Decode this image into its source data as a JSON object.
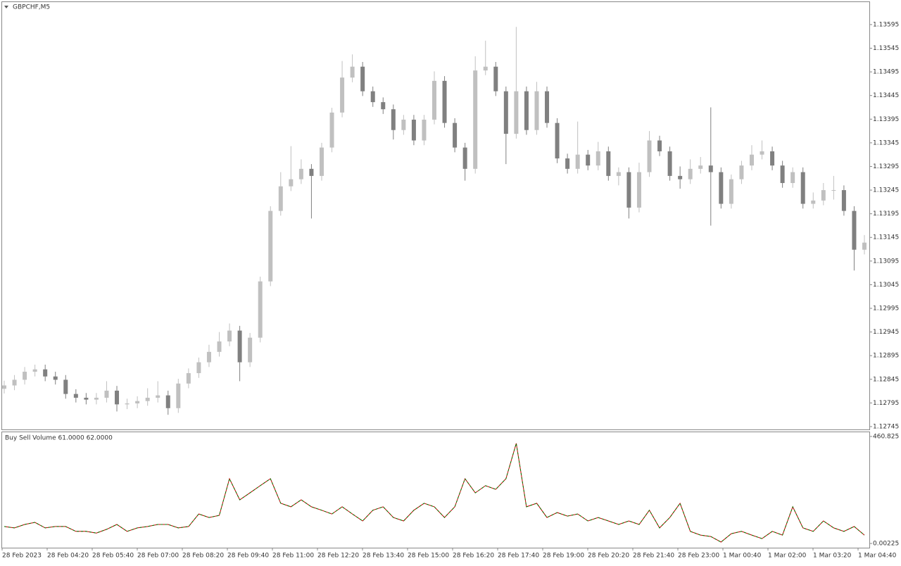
{
  "chart_data": [
    {
      "type": "candlestick",
      "title": "GBPCHF,M5",
      "x_labels": [
        "28 Feb 2023",
        "28 Feb 04:20",
        "28 Feb 05:40",
        "28 Feb 07:00",
        "28 Feb 08:20",
        "28 Feb 09:40",
        "28 Feb 11:00",
        "28 Feb 12:20",
        "28 Feb 13:40",
        "28 Feb 15:00",
        "28 Feb 16:20",
        "28 Feb 17:40",
        "28 Feb 19:00",
        "28 Feb 20:20",
        "28 Feb 21:40",
        "28 Feb 23:00",
        "1 Mar 00:40",
        "1 Mar 02:00",
        "1 Mar 03:20",
        "1 Mar 04:40"
      ],
      "open": [
        1.12825,
        1.12832,
        1.12844,
        1.12861,
        1.12866,
        1.12851,
        1.12844,
        1.12814,
        1.12806,
        1.12802,
        1.12806,
        1.12821,
        1.12792,
        1.12794,
        1.12799,
        1.12806,
        1.12811,
        1.12784,
        1.12836,
        1.12858,
        1.12881,
        1.12903,
        1.12925,
        1.12948,
        1.12881,
        1.12933,
        1.13052,
        1.13201,
        1.13253,
        1.13268,
        1.1329,
        1.13275,
        1.13335,
        1.13409,
        1.13483,
        1.13506,
        1.13454,
        1.13431,
        1.13416,
        1.13372,
        1.13394,
        1.1335,
        1.13394,
        1.13476,
        1.13387,
        1.13335,
        1.1329,
        1.13498,
        1.13506,
        1.13454,
        1.13364,
        1.13454,
        1.13372,
        1.13454,
        1.13387,
        1.13312,
        1.1329,
        1.1332,
        1.13297,
        1.13327,
        1.13275,
        1.13283,
        1.13208,
        1.13283,
        1.1335,
        1.13327,
        1.13275,
        1.13268,
        1.1329,
        1.13297,
        1.13283,
        1.13216,
        1.13268,
        1.13297,
        1.1332,
        1.13327,
        1.13297,
        1.1326,
        1.13283,
        1.13216,
        1.13223,
        1.13245,
        1.13245,
        1.13201,
        1.13119
      ],
      "high": [
        1.12842,
        1.12854,
        1.12871,
        1.12876,
        1.12876,
        1.12861,
        1.12854,
        1.12824,
        1.12816,
        1.12816,
        1.12841,
        1.12831,
        1.12804,
        1.12809,
        1.12826,
        1.12841,
        1.12821,
        1.12846,
        1.12868,
        1.12891,
        1.12918,
        1.12945,
        1.12963,
        1.12958,
        1.12943,
        1.13062,
        1.13211,
        1.13283,
        1.13338,
        1.1331,
        1.133,
        1.13345,
        1.13419,
        1.13518,
        1.13532,
        1.13516,
        1.13464,
        1.13441,
        1.13426,
        1.13404,
        1.13404,
        1.13404,
        1.13496,
        1.13486,
        1.13397,
        1.13345,
        1.13528,
        1.13561,
        1.13516,
        1.13464,
        1.1359,
        1.13464,
        1.13474,
        1.13464,
        1.13397,
        1.13322,
        1.1339,
        1.1333,
        1.13347,
        1.13337,
        1.13293,
        1.13293,
        1.13303,
        1.1337,
        1.1336,
        1.13337,
        1.13295,
        1.1331,
        1.13315,
        1.1342,
        1.13293,
        1.13278,
        1.13307,
        1.1334,
        1.1335,
        1.13337,
        1.13307,
        1.13293,
        1.13293,
        1.1324,
        1.1326,
        1.13275,
        1.13255,
        1.13211,
        1.1315
      ],
      "low": [
        1.12815,
        1.12822,
        1.12834,
        1.12851,
        1.12841,
        1.12834,
        1.12804,
        1.12796,
        1.12792,
        1.12792,
        1.12796,
        1.12777,
        1.12782,
        1.12784,
        1.12789,
        1.12796,
        1.1277,
        1.12774,
        1.12826,
        1.12848,
        1.12871,
        1.12893,
        1.12915,
        1.12841,
        1.12871,
        1.12923,
        1.13042,
        1.13191,
        1.13243,
        1.13258,
        1.13185,
        1.13265,
        1.13325,
        1.13399,
        1.13473,
        1.13444,
        1.13421,
        1.13406,
        1.13352,
        1.13362,
        1.1334,
        1.1334,
        1.13384,
        1.13377,
        1.13325,
        1.13265,
        1.1328,
        1.13488,
        1.13444,
        1.133,
        1.13354,
        1.13362,
        1.13362,
        1.13377,
        1.13302,
        1.1328,
        1.1328,
        1.13287,
        1.13287,
        1.13265,
        1.13255,
        1.13185,
        1.13198,
        1.13273,
        1.13317,
        1.13265,
        1.13248,
        1.13258,
        1.1328,
        1.1317,
        1.13206,
        1.13206,
        1.13258,
        1.13287,
        1.1331,
        1.13287,
        1.1325,
        1.1325,
        1.13206,
        1.13206,
        1.13213,
        1.13225,
        1.13191,
        1.13075,
        1.13109
      ],
      "close": [
        1.12832,
        1.12844,
        1.12861,
        1.12866,
        1.12851,
        1.12844,
        1.12814,
        1.12806,
        1.12802,
        1.12806,
        1.12821,
        1.12792,
        1.12794,
        1.12799,
        1.12806,
        1.12811,
        1.12784,
        1.12836,
        1.12858,
        1.12881,
        1.12903,
        1.12925,
        1.12948,
        1.12881,
        1.12933,
        1.13052,
        1.13201,
        1.13253,
        1.13268,
        1.1329,
        1.13275,
        1.13335,
        1.13409,
        1.13483,
        1.13506,
        1.13454,
        1.13431,
        1.13416,
        1.13372,
        1.13394,
        1.1335,
        1.13394,
        1.13476,
        1.13387,
        1.13335,
        1.1329,
        1.13498,
        1.13506,
        1.13454,
        1.13364,
        1.13454,
        1.13372,
        1.13454,
        1.13387,
        1.13312,
        1.1329,
        1.1332,
        1.13297,
        1.13327,
        1.13275,
        1.13283,
        1.13208,
        1.13283,
        1.1335,
        1.13327,
        1.13275,
        1.13268,
        1.1329,
        1.13297,
        1.13283,
        1.13216,
        1.13268,
        1.13297,
        1.1332,
        1.13327,
        1.13297,
        1.1326,
        1.13283,
        1.13216,
        1.13223,
        1.13245,
        1.13245,
        1.13201,
        1.13119,
        1.13134
      ],
      "up_color": "#c0c0c0",
      "down_color": "#808080",
      "ylim": [
        1.12739,
        1.13644
      ],
      "yticks": [
        1.13595,
        1.13545,
        1.13495,
        1.13445,
        1.13395,
        1.13345,
        1.13295,
        1.13245,
        1.13195,
        1.13145,
        1.13095,
        1.13045,
        1.12995,
        1.12945,
        1.12895,
        1.12845,
        1.12795,
        1.12745
      ]
    },
    {
      "type": "line",
      "title": "Buy Sell Volume 61.0000 62.0000",
      "values": [
        73,
        67,
        82,
        91,
        67,
        73,
        73,
        52,
        52,
        45,
        61,
        82,
        52,
        67,
        73,
        82,
        82,
        67,
        73,
        127,
        112,
        121,
        279,
        188,
        218,
        249,
        279,
        173,
        158,
        188,
        158,
        143,
        127,
        158,
        127,
        97,
        143,
        158,
        112,
        97,
        143,
        173,
        158,
        112,
        158,
        279,
        218,
        249,
        233,
        279,
        431,
        158,
        173,
        112,
        133,
        118,
        127,
        97,
        112,
        97,
        82,
        97,
        82,
        143,
        67,
        112,
        173,
        52,
        36,
        30,
        6,
        42,
        52,
        36,
        21,
        52,
        36,
        158,
        67,
        52,
        97,
        67,
        52,
        73,
        36
      ],
      "colors": [
        "#c00000",
        "#008000"
      ],
      "ylim": [
        0,
        460.825
      ],
      "yticks": [
        0.00225,
        460.825
      ]
    }
  ]
}
